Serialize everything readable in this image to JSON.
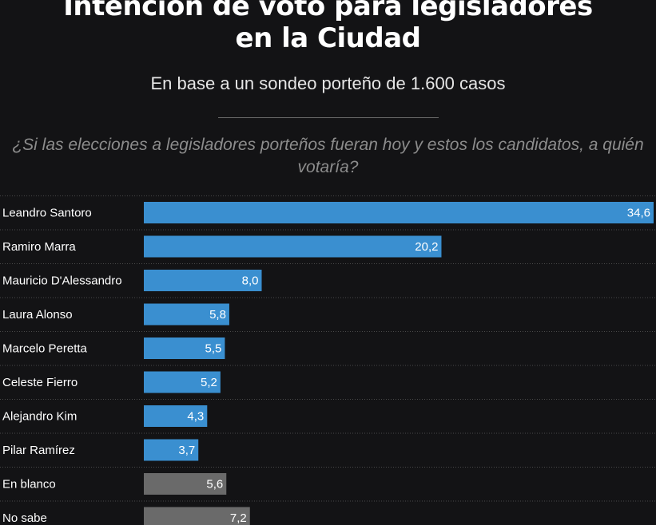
{
  "header": {
    "title_line1": "Intención de voto para legisladores",
    "title_line2": "en la Ciudad",
    "subtitle": "En base a un sondeo porteño de 1.600 casos",
    "question": "¿Si las elecciones a legisladores porteños fueran hoy y estos los candidatos, a quién votaría?"
  },
  "colors": {
    "candidate_bar": "#3a8fd0",
    "other_bar": "#6a6a6a",
    "background": "#131315",
    "label_text": "#ffffff",
    "row_divider": "#4a4a4a"
  },
  "chart_data": {
    "type": "bar",
    "orientation": "horizontal",
    "categories": [
      "Leandro Santoro",
      "Ramiro Marra",
      "Mauricio D'Alessandro",
      "Laura Alonso",
      "Marcelo Peretta",
      "Celeste Fierro",
      "Alejandro Kim",
      "Pilar Ramírez",
      "En blanco",
      "No sabe"
    ],
    "values": [
      34.6,
      20.2,
      8.0,
      5.8,
      5.5,
      5.2,
      4.3,
      3.7,
      5.6,
      7.2
    ],
    "value_labels": [
      "34,6",
      "20,2",
      "8,0",
      "5,8",
      "5,5",
      "5,2",
      "4,3",
      "3,7",
      "5,6",
      "7,2"
    ],
    "bar_kind": [
      "candidate",
      "candidate",
      "candidate",
      "candidate",
      "candidate",
      "candidate",
      "candidate",
      "candidate",
      "other",
      "other"
    ],
    "xlim": [
      0,
      34.6
    ],
    "grid": false,
    "legend": "none",
    "data_labels": "inside-end"
  }
}
